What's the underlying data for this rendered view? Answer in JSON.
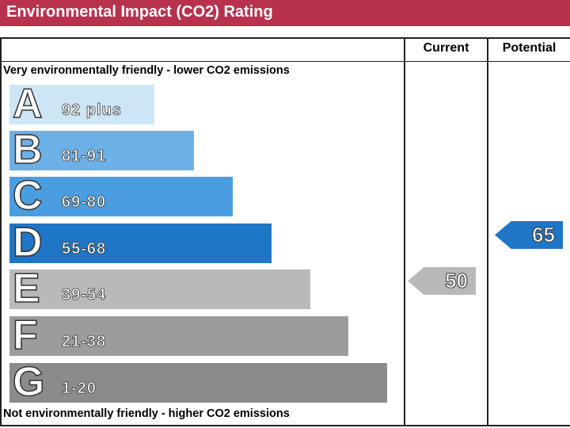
{
  "title": "Environmental Impact (CO2) Rating",
  "columns": {
    "current": "Current",
    "potential": "Potential"
  },
  "top_note": "Very environmentally friendly - lower CO2 emissions",
  "bottom_note": "Not environmentally friendly - higher CO2 emissions",
  "chart_data": {
    "type": "bar",
    "title": "Environmental Impact (CO2) Rating",
    "categories": [
      "A",
      "B",
      "C",
      "D",
      "E",
      "F",
      "G"
    ],
    "ranges": [
      "92 plus",
      "81-91",
      "69-80",
      "55-68",
      "39-54",
      "21-38",
      "1-20"
    ],
    "colors": [
      "#cde6f5",
      "#6cb0e8",
      "#4a9ee0",
      "#1f76c6",
      "#b9b9b9",
      "#9c9c9c",
      "#8b8b8b"
    ],
    "current": {
      "value": 50,
      "band": "E",
      "color": "#b9b9b9"
    },
    "potential": {
      "value": 65,
      "band": "D",
      "color": "#1f76c6"
    }
  }
}
